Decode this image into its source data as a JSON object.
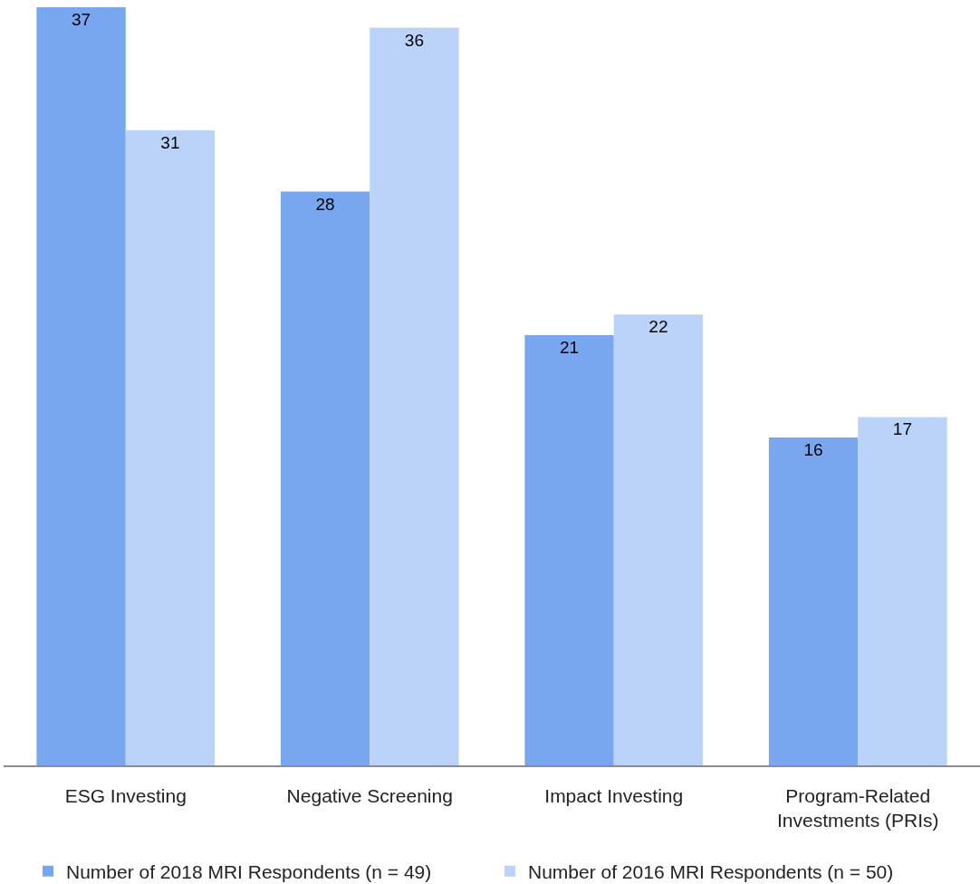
{
  "chart_data": {
    "type": "bar",
    "categories": [
      "ESG Investing",
      "Negative Screening",
      "Impact Investing",
      "Program-Related Investments (PRIs)"
    ],
    "series": [
      {
        "name": "Number of 2018 MRI Respondents (n = 49)",
        "color": "#78a7f0",
        "values": [
          37,
          28,
          21,
          16
        ]
      },
      {
        "name": "Number of 2016 MRI Respondents (n = 50)",
        "color": "#bbd3f8",
        "values": [
          31,
          36,
          22,
          17
        ]
      }
    ],
    "data_labels": true,
    "legend": "bottom",
    "tick_labels": "x"
  }
}
